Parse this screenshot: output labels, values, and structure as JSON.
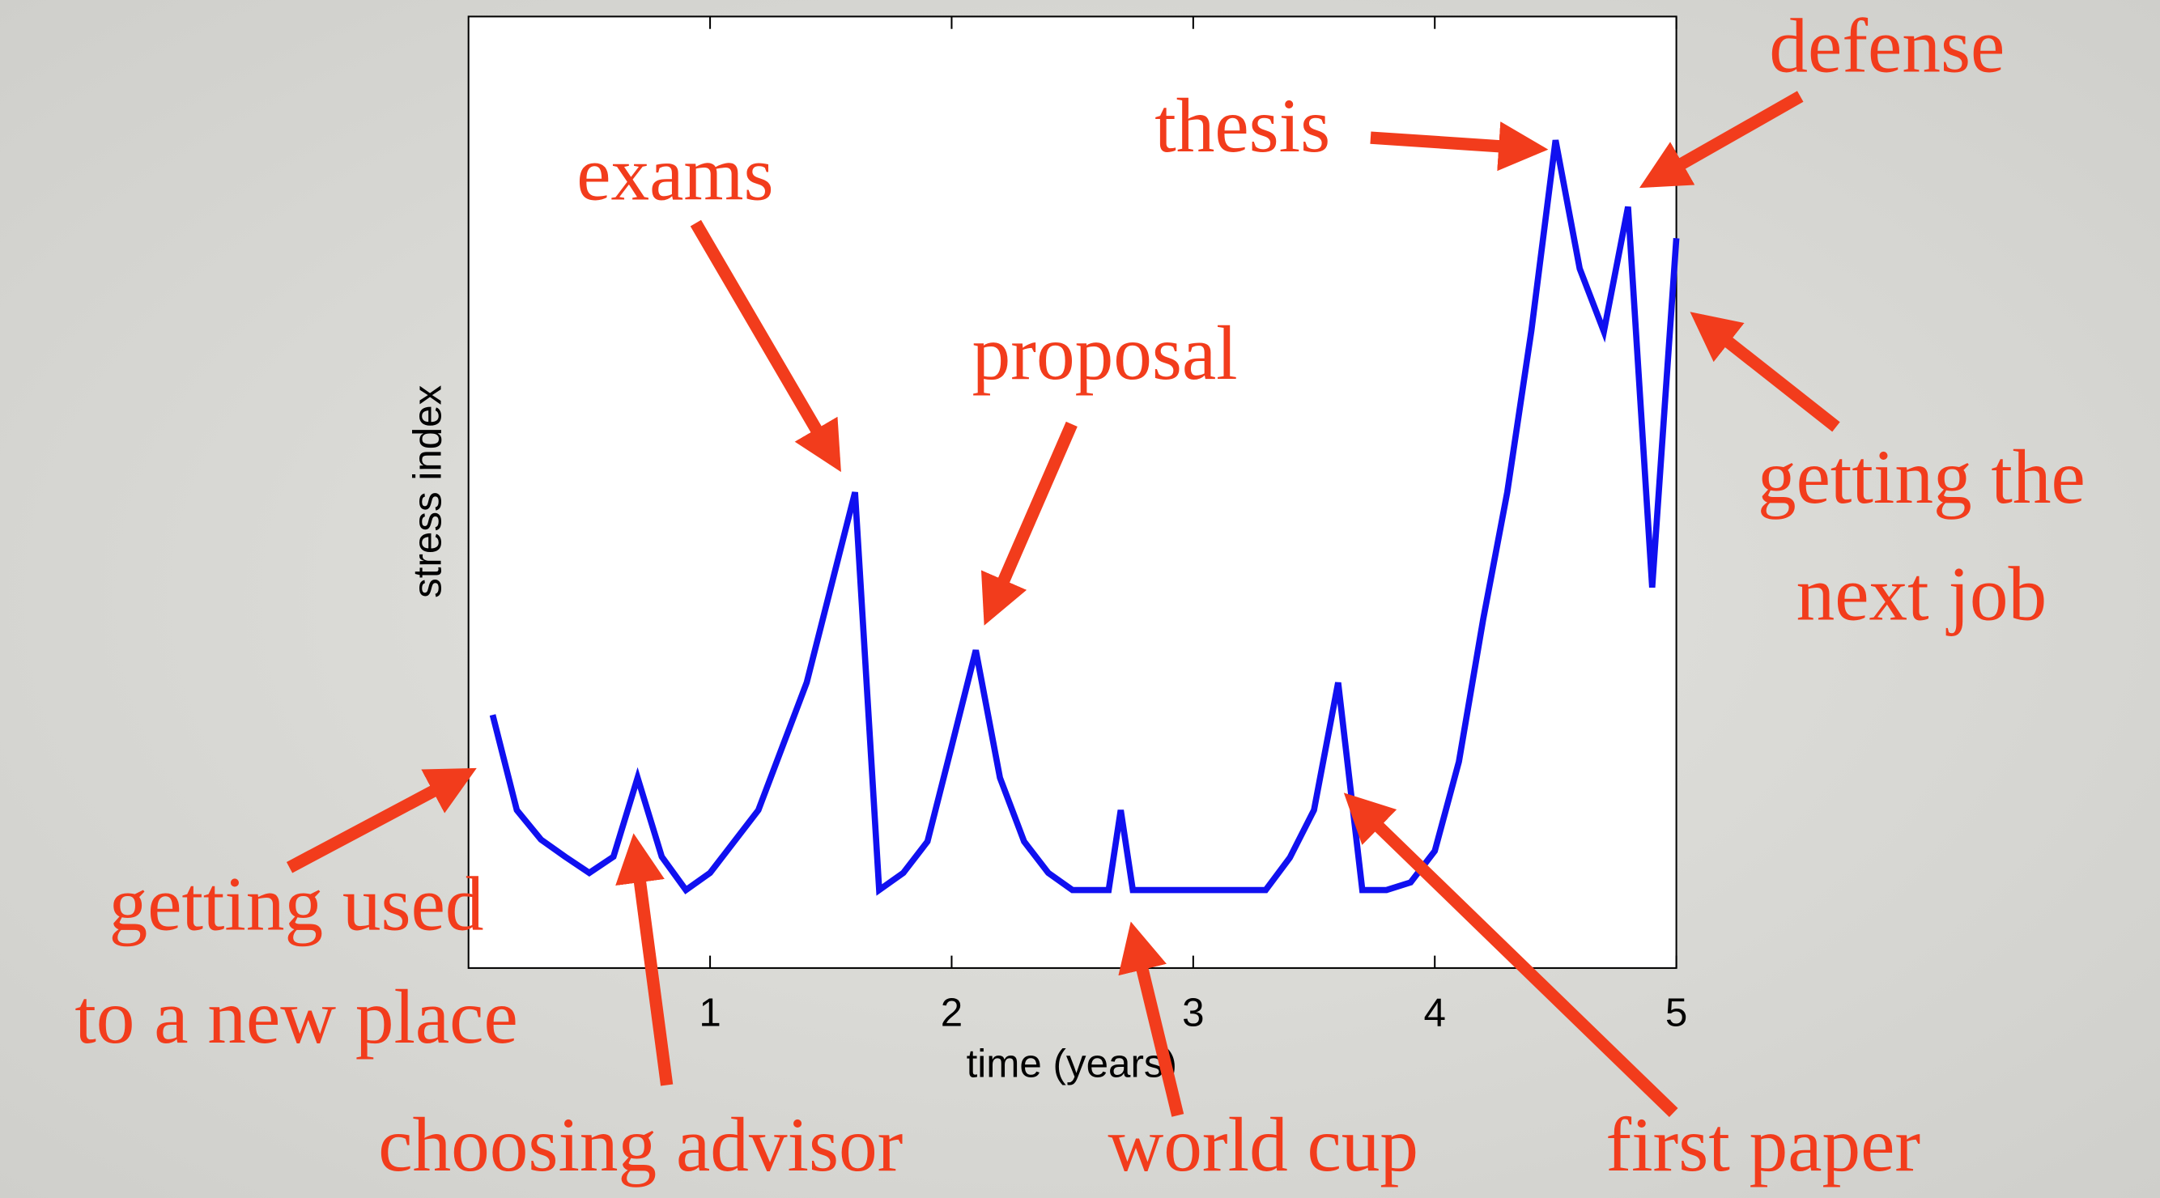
{
  "chart_data": {
    "type": "line",
    "xlabel": "time (years)",
    "ylabel": "stress index",
    "xlim": [
      0,
      5
    ],
    "ylim": [
      0,
      1
    ],
    "xticks": [
      1,
      2,
      3,
      4,
      5
    ],
    "series": [
      {
        "name": "stress",
        "color": "#1010f0",
        "x": [
          0.1,
          0.2,
          0.3,
          0.4,
          0.5,
          0.6,
          0.7,
          0.8,
          0.9,
          1.0,
          1.1,
          1.2,
          1.3,
          1.4,
          1.5,
          1.6,
          1.7,
          1.8,
          1.9,
          2.0,
          2.1,
          2.2,
          2.3,
          2.4,
          2.5,
          2.65,
          2.7,
          2.75,
          3.3,
          3.4,
          3.5,
          3.6,
          3.7,
          3.8,
          3.9,
          4.0,
          4.1,
          4.2,
          4.3,
          4.4,
          4.5,
          4.6,
          4.7,
          4.8,
          4.9,
          5.0
        ],
        "values": [
          0.266,
          0.166,
          0.135,
          0.117,
          0.1,
          0.117,
          0.2,
          0.117,
          0.082,
          0.1,
          0.133,
          0.166,
          0.233,
          0.3,
          0.4,
          0.5,
          0.082,
          0.1,
          0.133,
          0.233,
          0.334,
          0.2,
          0.133,
          0.1,
          0.082,
          0.082,
          0.166,
          0.082,
          0.082,
          0.116,
          0.166,
          0.3,
          0.082,
          0.082,
          0.09,
          0.123,
          0.217,
          0.366,
          0.5,
          0.67,
          0.87,
          0.735,
          0.669,
          0.8,
          0.4,
          0.767
        ]
      }
    ],
    "annotations": [
      {
        "lines": [
          "exams"
        ]
      },
      {
        "lines": [
          "thesis"
        ]
      },
      {
        "lines": [
          "defense"
        ]
      },
      {
        "lines": [
          "proposal"
        ]
      },
      {
        "lines": [
          "getting the",
          "next job"
        ]
      },
      {
        "lines": [
          "getting used",
          "to a new place"
        ]
      },
      {
        "lines": [
          "choosing advisor"
        ]
      },
      {
        "lines": [
          "world cup"
        ]
      },
      {
        "lines": [
          "first paper"
        ]
      }
    ]
  }
}
